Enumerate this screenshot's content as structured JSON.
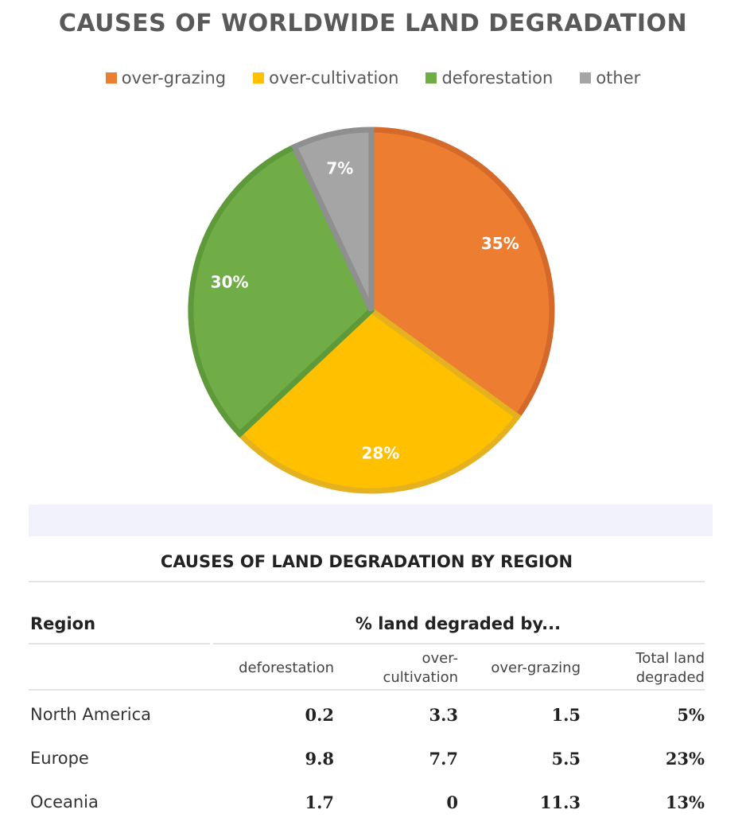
{
  "chart_data": [
    {
      "type": "pie",
      "title": "CAUSES OF WORLDWIDE LAND DEGRADATION",
      "legend_position": "top",
      "categories": [
        "over-grazing",
        "over-cultivation",
        "deforestation",
        "other"
      ],
      "values": [
        35,
        28,
        30,
        7
      ],
      "labels": [
        "35%",
        "28%",
        "30%",
        "7%"
      ],
      "colors": [
        "#ed7d31",
        "#ffc000",
        "#70ad47",
        "#a5a5a5"
      ],
      "border_colors": [
        "#d4692a",
        "#e6b11f",
        "#5f9a3a",
        "#8f8f8f"
      ]
    },
    {
      "type": "table",
      "title": "CAUSES OF LAND DEGRADATION BY REGION",
      "header": {
        "region": "Region",
        "group": "% land degraded by..."
      },
      "columns": [
        "deforestation",
        "over-\ncultivation",
        "over-grazing",
        "Total land\ndegraded"
      ],
      "rows": [
        {
          "region": "North America",
          "values": [
            "0.2",
            "3.3",
            "1.5",
            "5%"
          ]
        },
        {
          "region": "Europe",
          "values": [
            "9.8",
            "7.7",
            "5.5",
            "23%"
          ]
        },
        {
          "region": "Oceania",
          "values": [
            "1.7",
            "0",
            "11.3",
            "13%"
          ]
        }
      ]
    }
  ]
}
